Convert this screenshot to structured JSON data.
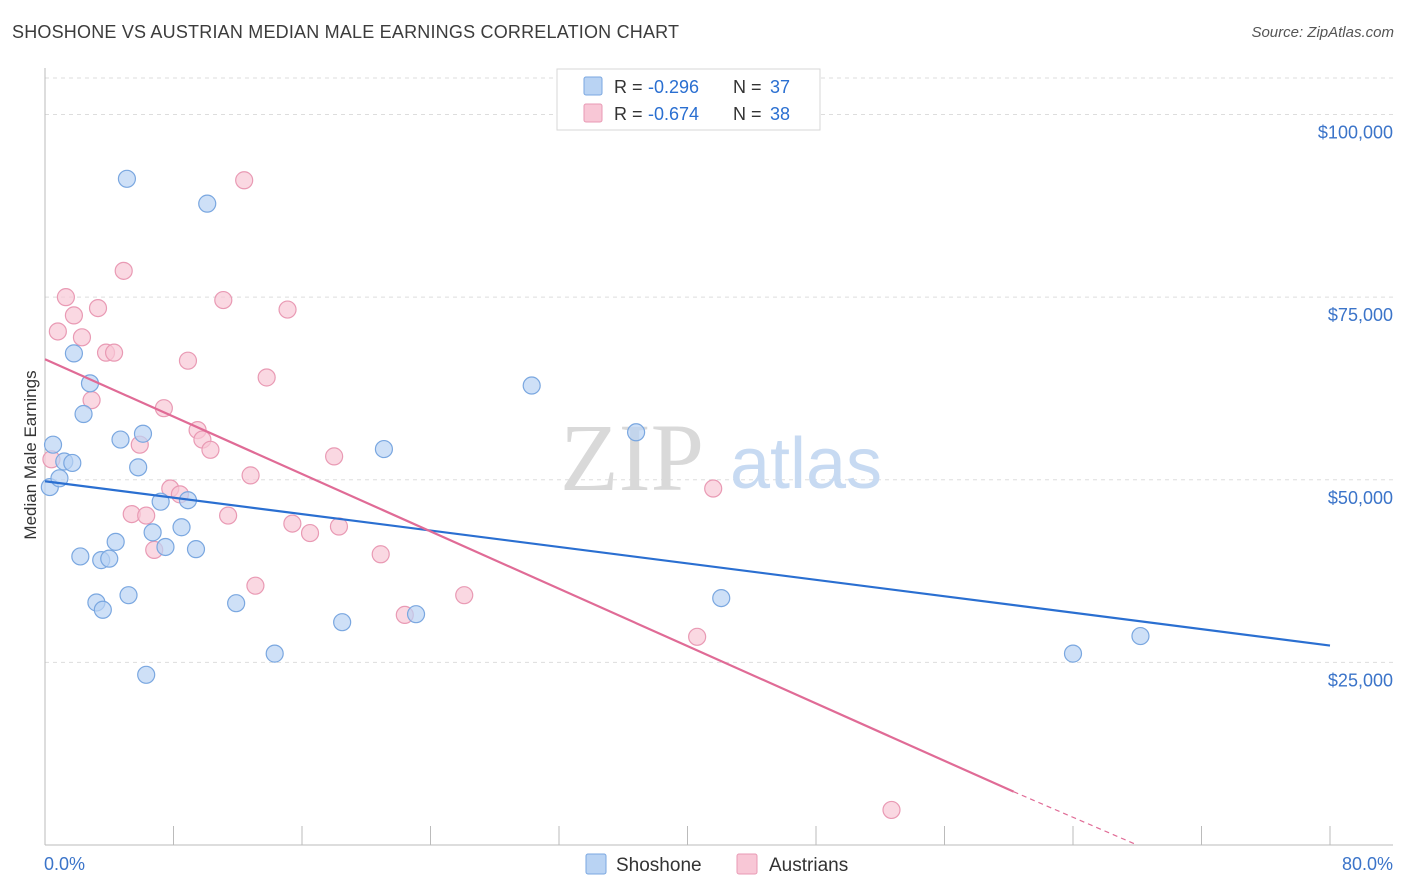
{
  "title": "SHOSHONE VS AUSTRIAN MEDIAN MALE EARNINGS CORRELATION CHART",
  "source": "Source: ZipAtlas.com",
  "watermark": {
    "zip": "ZIP",
    "atlas": "atlas"
  },
  "colors": {
    "shoshone_fill": "#b9d3f3",
    "shoshone_stroke": "#7aa7e0",
    "shoshone_line": "#2a6fd1",
    "austrian_fill": "#f8c7d6",
    "austrian_stroke": "#e99ab4",
    "austrian_line": "#e06b96",
    "axis_text": "#3b74c9",
    "grid": "#dddddd"
  },
  "legend": {
    "rows": [
      {
        "r_label": "R = ",
        "r_value": "-0.296",
        "n_label": "N = ",
        "n_value": "37"
      },
      {
        "r_label": "R = ",
        "r_value": "-0.674",
        "n_label": "N = ",
        "n_value": "38"
      }
    ]
  },
  "bottom_legend": [
    "Shoshone",
    "Austrians"
  ],
  "chart_data": {
    "type": "scatter",
    "title": "SHOSHONE VS AUSTRIAN MEDIAN MALE EARNINGS CORRELATION CHART",
    "xlabel": "",
    "ylabel": "Median Male Earnings",
    "xlim": [
      0,
      80
    ],
    "ylim": [
      0,
      105000
    ],
    "x_tick_labels": {
      "left": "0.0%",
      "right": "80.0%"
    },
    "y_ticks": [
      {
        "value": 25000,
        "label": "$25,000"
      },
      {
        "value": 50000,
        "label": "$50,000"
      },
      {
        "value": 75000,
        "label": "$75,000"
      },
      {
        "value": 100000,
        "label": "$100,000"
      }
    ],
    "series": [
      {
        "name": "Shoshone",
        "r": -0.296,
        "n": 37,
        "trend": {
          "x0": 0,
          "y0": 49800,
          "x1": 80,
          "y1": 27300
        },
        "points": [
          [
            0.3,
            49000
          ],
          [
            0.5,
            54800
          ],
          [
            0.9,
            50200
          ],
          [
            1.2,
            52500
          ],
          [
            1.7,
            52300
          ],
          [
            1.8,
            67300
          ],
          [
            2.2,
            39500
          ],
          [
            2.4,
            59000
          ],
          [
            2.8,
            63200
          ],
          [
            3.2,
            33200
          ],
          [
            3.5,
            39000
          ],
          [
            3.6,
            32200
          ],
          [
            4.0,
            39200
          ],
          [
            4.4,
            41500
          ],
          [
            4.7,
            55500
          ],
          [
            5.1,
            91200
          ],
          [
            5.2,
            34200
          ],
          [
            5.8,
            51700
          ],
          [
            6.1,
            56300
          ],
          [
            6.3,
            23300
          ],
          [
            6.7,
            42800
          ],
          [
            7.2,
            47000
          ],
          [
            7.5,
            40800
          ],
          [
            8.5,
            43500
          ],
          [
            8.9,
            47200
          ],
          [
            9.4,
            40500
          ],
          [
            10.1,
            87800
          ],
          [
            11.9,
            33100
          ],
          [
            14.3,
            26200
          ],
          [
            18.5,
            30500
          ],
          [
            21.1,
            54200
          ],
          [
            23.1,
            31600
          ],
          [
            30.3,
            62900
          ],
          [
            36.8,
            56500
          ],
          [
            42.1,
            33800
          ],
          [
            64.0,
            26200
          ],
          [
            68.2,
            28600
          ]
        ]
      },
      {
        "name": "Austrians",
        "r": -0.674,
        "n": 38,
        "trend": {
          "x0": 0,
          "y0": 66500,
          "x1": 60.3,
          "y1": 7300
        },
        "trend_dashed": {
          "x0": 60.3,
          "y0": 7300,
          "x1": 68.0,
          "y1": 0
        },
        "points": [
          [
            0.4,
            52800
          ],
          [
            0.8,
            70300
          ],
          [
            1.3,
            75000
          ],
          [
            1.8,
            72500
          ],
          [
            2.3,
            69500
          ],
          [
            2.9,
            60900
          ],
          [
            3.3,
            73500
          ],
          [
            3.8,
            67400
          ],
          [
            4.3,
            67400
          ],
          [
            4.9,
            78600
          ],
          [
            5.4,
            45300
          ],
          [
            5.9,
            54800
          ],
          [
            6.3,
            45100
          ],
          [
            6.8,
            40400
          ],
          [
            7.4,
            59800
          ],
          [
            7.8,
            48800
          ],
          [
            8.4,
            48000
          ],
          [
            8.9,
            66300
          ],
          [
            9.5,
            56800
          ],
          [
            9.8,
            55500
          ],
          [
            10.3,
            54100
          ],
          [
            11.1,
            74600
          ],
          [
            11.4,
            45100
          ],
          [
            12.4,
            91000
          ],
          [
            12.8,
            50600
          ],
          [
            13.1,
            35500
          ],
          [
            13.8,
            64000
          ],
          [
            15.1,
            73300
          ],
          [
            15.4,
            44000
          ],
          [
            16.5,
            42700
          ],
          [
            18.3,
            43600
          ],
          [
            18.0,
            53200
          ],
          [
            20.9,
            39800
          ],
          [
            22.4,
            31500
          ],
          [
            26.1,
            34200
          ],
          [
            40.6,
            28500
          ],
          [
            41.6,
            48800
          ],
          [
            52.7,
            4800
          ]
        ]
      }
    ]
  }
}
